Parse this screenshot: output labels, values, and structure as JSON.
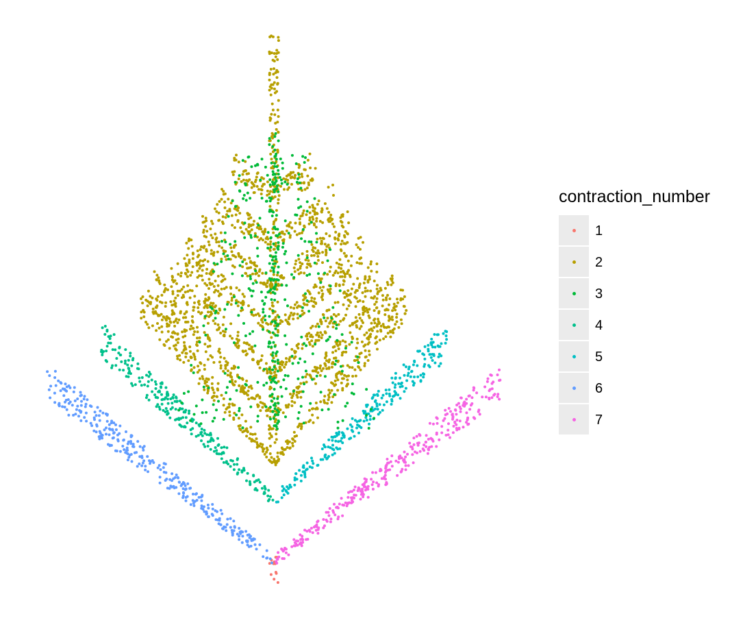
{
  "chart_data": {
    "type": "scatter",
    "title": "",
    "xlabel": "",
    "ylabel": "",
    "axes": "none",
    "grid": false,
    "legend_position": "right",
    "legend_title": "contraction_number",
    "xlim": [
      -1.0,
      1.0
    ],
    "ylim": [
      0,
      1.0
    ],
    "series": [
      {
        "name": "1",
        "color": "#F8766D",
        "arms": [],
        "trunk": [
          0.0,
          0.0,
          0.05
        ]
      },
      {
        "name": "2",
        "color": "#B79F00",
        "arms": [
          {
            "angle_left": 28,
            "angle_right": 28,
            "length_left": 0.63,
            "length_right": 0.63,
            "base": 0.22
          },
          {
            "angle_left": 25,
            "angle_right": 25,
            "length_left": 0.55,
            "length_right": 0.55,
            "base": 0.3
          },
          {
            "angle_left": 23,
            "angle_right": 23,
            "length_left": 0.47,
            "length_right": 0.47,
            "base": 0.38
          },
          {
            "angle_left": 21,
            "angle_right": 21,
            "length_left": 0.4,
            "length_right": 0.4,
            "base": 0.46
          },
          {
            "angle_left": 19,
            "angle_right": 19,
            "length_left": 0.33,
            "length_right": 0.33,
            "base": 0.54
          },
          {
            "angle_left": 17,
            "angle_right": 17,
            "length_left": 0.26,
            "length_right": 0.26,
            "base": 0.62
          },
          {
            "angle_left": 15,
            "angle_right": 15,
            "length_left": 0.18,
            "length_right": 0.18,
            "base": 0.71
          }
        ],
        "trunk": [
          0.0,
          0.22,
          1.0
        ]
      },
      {
        "name": "3",
        "color": "#00BA38",
        "arms": [],
        "trunk": [
          0.0,
          0.28,
          0.82
        ]
      },
      {
        "name": "4",
        "color": "#00C08B",
        "arms": [
          {
            "angle_left": 22,
            "angle_right": 0,
            "length_left": 0.78,
            "length_right": 0,
            "base": 0.15
          }
        ],
        "trunk": []
      },
      {
        "name": "5",
        "color": "#00BFC4",
        "arms": [
          {
            "angle_left": 0,
            "angle_right": 22,
            "length_left": 0,
            "length_right": 0.78,
            "base": 0.15
          }
        ],
        "trunk": []
      },
      {
        "name": "6",
        "color": "#619CFF",
        "arms": [
          {
            "angle_left": 19,
            "angle_right": 0,
            "length_left": 1.0,
            "length_right": 0,
            "base": 0.04
          }
        ],
        "trunk": []
      },
      {
        "name": "7",
        "color": "#F564E3",
        "arms": [
          {
            "angle_left": 0,
            "angle_right": 19,
            "length_left": 0,
            "length_right": 1.0,
            "base": 0.04
          }
        ],
        "trunk": []
      }
    ],
    "legend_colors": [
      "#F8766D",
      "#B79F00",
      "#00BA38",
      "#00C08B",
      "#00BFC4",
      "#619CFF",
      "#F564E3"
    ]
  }
}
